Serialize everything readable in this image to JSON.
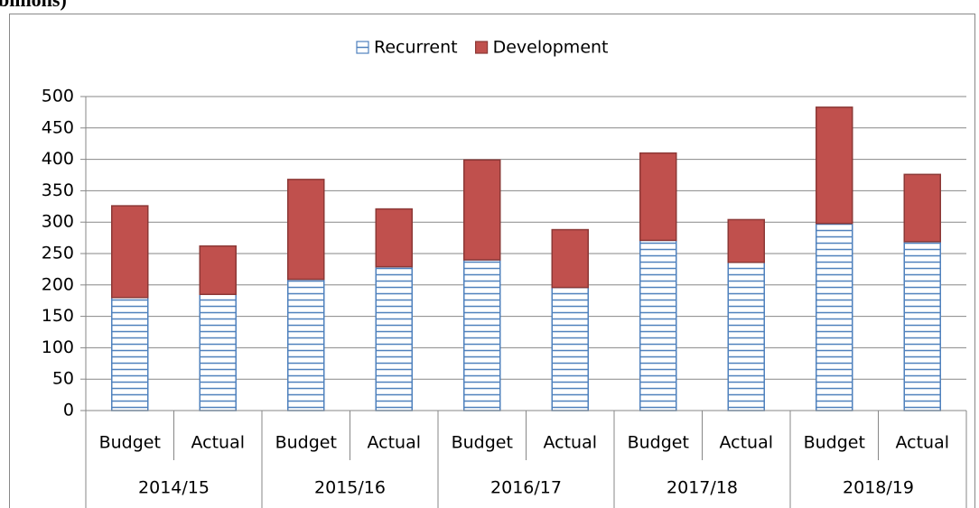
{
  "chart_data": {
    "type": "stacked_bar",
    "title": "billions)",
    "groups": [
      "2014/15",
      "2015/16",
      "2016/17",
      "2017/18",
      "2018/19"
    ],
    "categories": [
      "Budget",
      "Actual",
      "Budget",
      "Actual",
      "Budget",
      "Actual",
      "Budget",
      "Actual",
      "Budget",
      "Actual"
    ],
    "series": [
      {
        "name": "Recurrent",
        "color": "#4f81bd",
        "pattern": "horizontal-stripes",
        "values": [
          180,
          185,
          209,
          229,
          240,
          196,
          271,
          236,
          298,
          269
        ]
      },
      {
        "name": "Development",
        "color": "#c0504d",
        "values": [
          146,
          77,
          159,
          92,
          159,
          92,
          139,
          68,
          185,
          107
        ]
      }
    ],
    "ylim": [
      0,
      500
    ],
    "yticks": [
      0,
      50,
      100,
      150,
      200,
      250,
      300,
      350,
      400,
      450,
      500
    ],
    "grid": true,
    "legend": "top"
  }
}
